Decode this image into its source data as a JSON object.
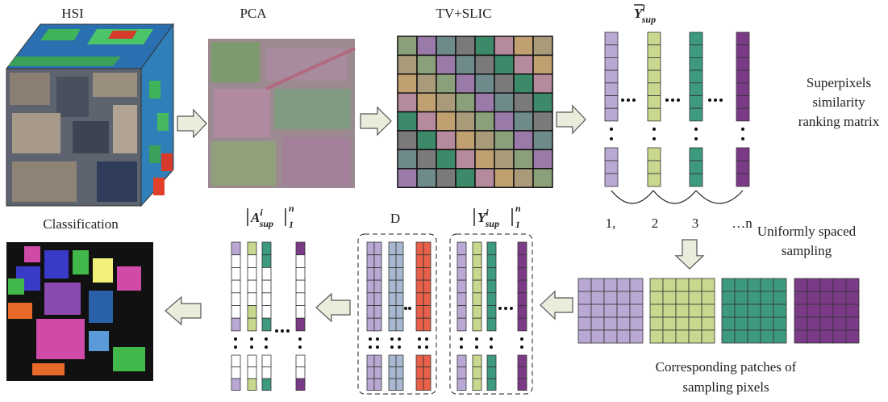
{
  "panels": {
    "hsi": "HSI",
    "pca": "PCA",
    "tv_slic": "TV+SLIC",
    "classification": "Classification",
    "dictionary": "D"
  },
  "y_bar_label": {
    "base": "Y",
    "sup": "i",
    "sub": "sup"
  },
  "a_label": {
    "base": "A",
    "sup": "i",
    "sub": "sup",
    "upper": "n",
    "lower": "1"
  },
  "y_label": {
    "base": "Y",
    "sup": "i",
    "sub": "sup",
    "upper": "n",
    "lower": "1"
  },
  "ranking_matrix": {
    "caption": [
      "Superpixels",
      "similarity",
      "ranking matrix"
    ],
    "indices": [
      "1,",
      "2",
      "3",
      "…n"
    ]
  },
  "sampling": {
    "caption": [
      "Uniformly spaced",
      "sampling"
    ]
  },
  "patches": {
    "caption": [
      "Corresponding patches of",
      "sampling pixels"
    ]
  }
}
